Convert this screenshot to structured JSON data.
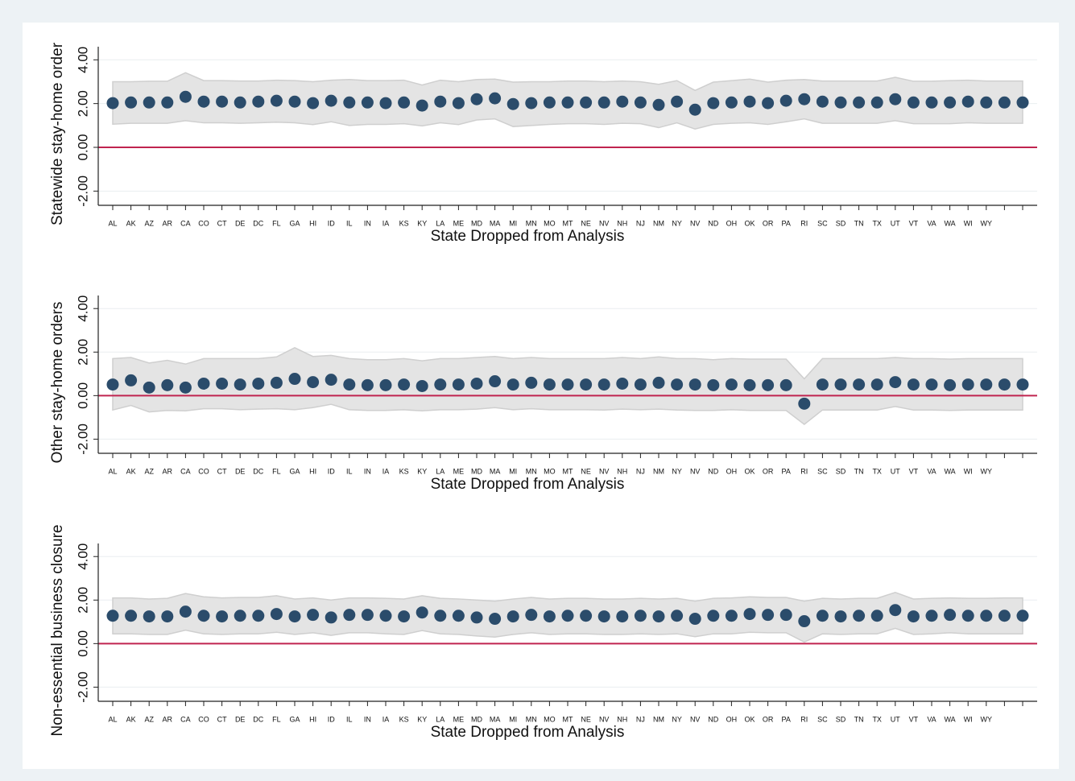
{
  "chart_data": [
    {
      "type": "dot-ci",
      "ylabel": "Statewide stay-home order",
      "xlabel": "State Dropped from Analysis",
      "categories": [
        "AL",
        "AK",
        "AZ",
        "AR",
        "CA",
        "CO",
        "CT",
        "DE",
        "DC",
        "FL",
        "GA",
        "HI",
        "ID",
        "IL",
        "IN",
        "IA",
        "KS",
        "KY",
        "LA",
        "ME",
        "MD",
        "MA",
        "MI",
        "MN",
        "MO",
        "MT",
        "NE",
        "NV",
        "NH",
        "NJ",
        "NM",
        "NY",
        "NV",
        "ND",
        "OH",
        "OK",
        "OR",
        "PA",
        "RI",
        "SC",
        "SD",
        "TN",
        "TX",
        "UT",
        "VT",
        "VA",
        "WA",
        "WI",
        "WY",
        null,
        null
      ],
      "values": [
        2.02,
        2.05,
        2.05,
        2.05,
        2.31,
        2.09,
        2.09,
        2.05,
        2.09,
        2.13,
        2.09,
        2.02,
        2.13,
        2.05,
        2.05,
        2.02,
        2.05,
        1.91,
        2.09,
        2.02,
        2.2,
        2.24,
        1.98,
        2.02,
        2.05,
        2.05,
        2.05,
        2.05,
        2.09,
        2.05,
        1.94,
        2.09,
        1.72,
        2.02,
        2.05,
        2.09,
        2.02,
        2.13,
        2.2,
        2.09,
        2.05,
        2.05,
        2.05,
        2.2,
        2.05,
        2.05,
        2.05,
        2.09,
        2.05,
        2.05,
        2.05
      ],
      "ci_upper": [
        3.0,
        3.0,
        3.02,
        3.02,
        3.41,
        3.05,
        3.05,
        3.03,
        3.03,
        3.07,
        3.05,
        3.0,
        3.07,
        3.1,
        3.05,
        3.05,
        3.07,
        2.85,
        3.07,
        3.0,
        3.1,
        3.12,
        2.98,
        3.0,
        3.0,
        3.03,
        3.03,
        3.0,
        3.03,
        3.0,
        2.88,
        3.05,
        2.6,
        2.98,
        3.05,
        3.12,
        2.98,
        3.07,
        3.1,
        3.03,
        3.03,
        3.03,
        3.03,
        3.2,
        3.02,
        3.02,
        3.05,
        3.07,
        3.03,
        3.03,
        3.03
      ],
      "ci_lower": [
        1.06,
        1.1,
        1.1,
        1.1,
        1.22,
        1.12,
        1.12,
        1.1,
        1.12,
        1.15,
        1.12,
        1.04,
        1.17,
        1.0,
        1.05,
        1.05,
        1.08,
        0.98,
        1.12,
        1.04,
        1.25,
        1.3,
        0.95,
        1.0,
        1.05,
        1.08,
        1.08,
        1.05,
        1.1,
        1.08,
        0.9,
        1.12,
        0.84,
        1.05,
        1.1,
        1.12,
        1.05,
        1.17,
        1.3,
        1.1,
        1.1,
        1.1,
        1.1,
        1.22,
        1.08,
        1.08,
        1.08,
        1.12,
        1.1,
        1.1,
        1.1
      ],
      "ylim": [
        -2.65,
        4.6
      ],
      "yticks": [
        {
          "value": -2,
          "label": "-2.00"
        },
        {
          "value": 0,
          "label": "0.00"
        },
        {
          "value": 2,
          "label": "2.00"
        },
        {
          "value": 4,
          "label": "4.00"
        }
      ],
      "grid": true,
      "color": "#2b4c6b",
      "band_color": "#e4e4e4",
      "reference_line": {
        "value": 0,
        "color": "#c0244f"
      }
    },
    {
      "type": "dot-ci",
      "ylabel": "Other stay-home orders",
      "xlabel": "State Dropped from Analysis",
      "categories": [
        "AL",
        "AK",
        "AZ",
        "AR",
        "CA",
        "CO",
        "CT",
        "DE",
        "DC",
        "FL",
        "GA",
        "HI",
        "ID",
        "IL",
        "IN",
        "IA",
        "KS",
        "KY",
        "LA",
        "ME",
        "MD",
        "MA",
        "MI",
        "MN",
        "MO",
        "MT",
        "NE",
        "NV",
        "NH",
        "NJ",
        "NM",
        "NY",
        "NV",
        "ND",
        "OH",
        "OK",
        "OR",
        "PA",
        "RI",
        "SC",
        "SD",
        "TN",
        "TX",
        "UT",
        "VT",
        "VA",
        "WA",
        "WI",
        "WY",
        null,
        null
      ],
      "values": [
        0.51,
        0.7,
        0.37,
        0.48,
        0.37,
        0.55,
        0.55,
        0.51,
        0.55,
        0.59,
        0.77,
        0.62,
        0.73,
        0.51,
        0.48,
        0.48,
        0.51,
        0.44,
        0.51,
        0.51,
        0.55,
        0.66,
        0.51,
        0.59,
        0.51,
        0.51,
        0.51,
        0.51,
        0.55,
        0.51,
        0.59,
        0.51,
        0.51,
        0.48,
        0.51,
        0.48,
        0.48,
        0.48,
        -0.37,
        0.51,
        0.51,
        0.51,
        0.51,
        0.62,
        0.51,
        0.51,
        0.48,
        0.51,
        0.51,
        0.51,
        0.51
      ],
      "ci_upper": [
        1.7,
        1.75,
        1.5,
        1.62,
        1.45,
        1.7,
        1.7,
        1.7,
        1.7,
        1.78,
        2.2,
        1.8,
        1.85,
        1.7,
        1.65,
        1.65,
        1.7,
        1.6,
        1.7,
        1.7,
        1.75,
        1.8,
        1.7,
        1.75,
        1.7,
        1.7,
        1.7,
        1.7,
        1.75,
        1.7,
        1.78,
        1.7,
        1.7,
        1.65,
        1.7,
        1.68,
        1.68,
        1.68,
        0.77,
        1.7,
        1.7,
        1.7,
        1.7,
        1.75,
        1.7,
        1.7,
        1.68,
        1.7,
        1.7,
        1.7,
        1.7
      ],
      "ci_lower": [
        -0.66,
        -0.45,
        -0.75,
        -0.68,
        -0.7,
        -0.6,
        -0.6,
        -0.65,
        -0.62,
        -0.6,
        -0.65,
        -0.55,
        -0.4,
        -0.65,
        -0.68,
        -0.68,
        -0.65,
        -0.7,
        -0.65,
        -0.65,
        -0.62,
        -0.55,
        -0.65,
        -0.6,
        -0.65,
        -0.65,
        -0.65,
        -0.66,
        -0.62,
        -0.65,
        -0.62,
        -0.66,
        -0.68,
        -0.68,
        -0.65,
        -0.68,
        -0.68,
        -0.68,
        -1.32,
        -0.66,
        -0.66,
        -0.66,
        -0.66,
        -0.5,
        -0.66,
        -0.66,
        -0.68,
        -0.66,
        -0.66,
        -0.66,
        -0.66
      ],
      "ylim": [
        -2.65,
        4.6
      ],
      "yticks": [
        {
          "value": -2,
          "label": "-2.00"
        },
        {
          "value": 0,
          "label": "0.00"
        },
        {
          "value": 2,
          "label": "2.00"
        },
        {
          "value": 4,
          "label": "4.00"
        }
      ],
      "grid": true,
      "color": "#2b4c6b",
      "band_color": "#e4e4e4",
      "reference_line": {
        "value": 0,
        "color": "#c0244f"
      }
    },
    {
      "type": "dot-ci",
      "ylabel": "Non-essential business closure",
      "xlabel": "State Dropped from Analysis",
      "categories": [
        "AL",
        "AK",
        "AZ",
        "AR",
        "CA",
        "CO",
        "CT",
        "DE",
        "DC",
        "FL",
        "GA",
        "HI",
        "ID",
        "IL",
        "IN",
        "IA",
        "KS",
        "KY",
        "LA",
        "ME",
        "MD",
        "MA",
        "MI",
        "MN",
        "MO",
        "MT",
        "NE",
        "NV",
        "NH",
        "NJ",
        "NM",
        "NY",
        "NV",
        "ND",
        "OH",
        "OK",
        "OR",
        "PA",
        "RI",
        "SC",
        "SD",
        "TN",
        "TX",
        "UT",
        "VT",
        "VA",
        "WA",
        "WI",
        "WY",
        null,
        null
      ],
      "values": [
        1.28,
        1.28,
        1.25,
        1.25,
        1.47,
        1.28,
        1.25,
        1.28,
        1.28,
        1.36,
        1.25,
        1.32,
        1.2,
        1.32,
        1.32,
        1.28,
        1.25,
        1.43,
        1.28,
        1.28,
        1.2,
        1.14,
        1.25,
        1.32,
        1.25,
        1.28,
        1.28,
        1.25,
        1.25,
        1.28,
        1.25,
        1.28,
        1.14,
        1.28,
        1.28,
        1.36,
        1.32,
        1.32,
        1.03,
        1.28,
        1.25,
        1.28,
        1.28,
        1.54,
        1.25,
        1.28,
        1.32,
        1.28,
        1.28,
        1.28,
        1.28
      ],
      "ci_upper": [
        2.1,
        2.1,
        2.05,
        2.08,
        2.3,
        2.15,
        2.1,
        2.12,
        2.12,
        2.2,
        2.05,
        2.1,
        2.0,
        2.1,
        2.1,
        2.08,
        2.05,
        2.2,
        2.08,
        2.05,
        2.0,
        1.95,
        2.05,
        2.12,
        2.05,
        2.08,
        2.08,
        2.05,
        2.05,
        2.08,
        2.05,
        2.08,
        1.95,
        2.08,
        2.1,
        2.15,
        2.12,
        2.12,
        1.95,
        2.08,
        2.05,
        2.08,
        2.08,
        2.35,
        2.05,
        2.08,
        2.1,
        2.08,
        2.08,
        2.1,
        2.1
      ],
      "ci_lower": [
        0.45,
        0.45,
        0.42,
        0.42,
        0.62,
        0.45,
        0.42,
        0.45,
        0.45,
        0.52,
        0.42,
        0.5,
        0.38,
        0.5,
        0.5,
        0.45,
        0.42,
        0.6,
        0.45,
        0.42,
        0.35,
        0.3,
        0.42,
        0.5,
        0.42,
        0.45,
        0.45,
        0.42,
        0.42,
        0.45,
        0.42,
        0.45,
        0.32,
        0.45,
        0.45,
        0.52,
        0.5,
        0.5,
        0.07,
        0.45,
        0.42,
        0.45,
        0.45,
        0.7,
        0.42,
        0.45,
        0.5,
        0.45,
        0.45,
        0.45,
        0.45
      ],
      "ylim": [
        -2.65,
        4.6
      ],
      "yticks": [
        {
          "value": -2,
          "label": "-2.00"
        },
        {
          "value": 0,
          "label": "0.00"
        },
        {
          "value": 2,
          "label": "2.00"
        },
        {
          "value": 4,
          "label": "4.00"
        }
      ],
      "grid": true,
      "color": "#2b4c6b",
      "band_color": "#e4e4e4",
      "reference_line": {
        "value": 0,
        "color": "#c0244f"
      }
    }
  ]
}
